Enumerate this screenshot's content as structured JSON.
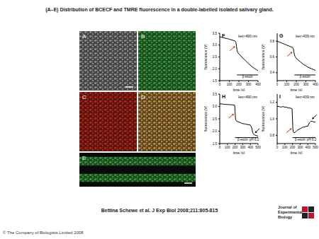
{
  "title": "(A–E) Distribution of BCECF and TMRE fluorescence in a double-labelled isolated salivary gland.",
  "images": [
    {
      "label": "A",
      "color": "#a0a0a0"
    },
    {
      "label": "B",
      "color": "#3cb043"
    },
    {
      "label": "C",
      "color": "#d0281a"
    },
    {
      "label": "D",
      "color": "#dba24a"
    },
    {
      "label": "E",
      "color": "#3cb043"
    }
  ],
  "chart_data": [
    {
      "title": "F",
      "type": "line",
      "annotation": "λex≈490 nm",
      "x_label": "time (s)",
      "y_label": "fluorescence (V)",
      "color": "#000000",
      "x": [
        0,
        20,
        40,
        60,
        80,
        100,
        120,
        140,
        160,
        170,
        175,
        180,
        185,
        190,
        200,
        220,
        240,
        260,
        280,
        300,
        320,
        340,
        360,
        380,
        400
      ],
      "values": [
        3.35,
        3.33,
        3.31,
        3.29,
        3.27,
        3.25,
        3.22,
        3.2,
        3.17,
        3.1,
        2.95,
        2.8,
        2.72,
        2.68,
        2.62,
        2.55,
        2.45,
        2.38,
        2.3,
        2.22,
        2.15,
        2.08,
        2.02,
        1.97,
        1.92
      ],
      "xlim": [
        0,
        400
      ],
      "xticks": [
        0,
        100,
        200,
        300,
        400
      ],
      "ylim": [
        1.5,
        3.5
      ],
      "yticks": [
        1.5,
        {
          "value": 2,
          "label": "2.0"
        },
        2.5,
        {
          "value": 3,
          "label": "3.0"
        },
        3.5
      ],
      "treatments": [
        {
          "label": "β-escin",
          "x": [
            180,
            400
          ]
        }
      ],
      "arrows": [
        {
          "x": 172,
          "y": 3.0,
          "color": "#e02a1a"
        }
      ]
    },
    {
      "title": "G",
      "type": "line",
      "annotation": "λex≈439 nm",
      "x_label": "time (s)",
      "y_label": "fluorescence (V)",
      "color": "#000000",
      "x": [
        0,
        20,
        40,
        60,
        80,
        100,
        120,
        140,
        160,
        170,
        175,
        180,
        185,
        190,
        200,
        220,
        240,
        260,
        280,
        300,
        320,
        340,
        360,
        380,
        400
      ],
      "values": [
        0.8,
        0.79,
        0.78,
        0.77,
        0.76,
        0.75,
        0.74,
        0.73,
        0.72,
        0.7,
        0.66,
        0.63,
        0.61,
        0.6,
        0.58,
        0.56,
        0.54,
        0.52,
        0.5,
        0.49,
        0.47,
        0.46,
        0.45,
        0.44,
        0.43
      ],
      "xlim": [
        0,
        400
      ],
      "xticks": [
        0,
        100,
        200,
        300,
        400
      ],
      "ylim": [
        0.3,
        0.9
      ],
      "yticks": [
        0.4,
        0.6,
        0.8
      ],
      "treatments": [
        {
          "label": "β-escin",
          "x": [
            180,
            400
          ]
        }
      ],
      "arrows": [
        {
          "x": 172,
          "y": 0.68,
          "color": "#e02a1a"
        }
      ]
    },
    {
      "title": "H",
      "type": "line",
      "annotation": "λex≈490 nm",
      "x_label": "time (s)",
      "y_label": "fluorescence (V)",
      "color": "#000000",
      "x": [
        0,
        25,
        50,
        75,
        100,
        125,
        150,
        175,
        195,
        200,
        205,
        210,
        220,
        240,
        260,
        280,
        300,
        320,
        340,
        360,
        380,
        400,
        410,
        420,
        430,
        440,
        460,
        480,
        500
      ],
      "values": [
        3.1,
        3.1,
        3.09,
        3.08,
        3.08,
        3.07,
        3.07,
        3.06,
        3.05,
        2.8,
        2.55,
        2.45,
        2.4,
        2.38,
        2.36,
        2.33,
        2.3,
        2.3,
        2.28,
        2.27,
        2.26,
        2.25,
        2.2,
        2.1,
        1.95,
        1.88,
        1.84,
        1.82,
        1.8
      ],
      "xlim": [
        0,
        500
      ],
      "xticks": [
        0,
        100,
        200,
        300,
        400,
        500
      ],
      "ylim": [
        1.5,
        3.5
      ],
      "yticks": [
        1.5,
        {
          "value": 2,
          "label": "2.0"
        },
        2.5,
        {
          "value": 3,
          "label": "3.0"
        },
        3.5
      ],
      "treatments": [
        {
          "label": "β-escin",
          "x": [
            200,
            400
          ]
        },
        {
          "label": "pH 6.2",
          "x": [
            400,
            500
          ]
        }
      ],
      "arrows": [
        {
          "x": 200,
          "y": 2.75,
          "color": "#e02a1a"
        },
        {
          "x": 445,
          "y": 1.88,
          "color": "#000000"
        }
      ]
    },
    {
      "title": "I",
      "type": "line",
      "annotation": "λex≈439 nm",
      "x_label": "time (s)",
      "y_label": "fluorescence (V)",
      "color": "#000000",
      "x": [
        0,
        25,
        50,
        75,
        100,
        125,
        150,
        175,
        195,
        200,
        205,
        210,
        220,
        240,
        260,
        280,
        300,
        320,
        340,
        360,
        380,
        400,
        410,
        420,
        430,
        440,
        460,
        480,
        500
      ],
      "values": [
        1.15,
        1.15,
        1.14,
        1.15,
        1.14,
        1.14,
        1.13,
        1.13,
        1.12,
        1.0,
        0.88,
        0.84,
        0.83,
        0.84,
        0.86,
        0.87,
        0.88,
        0.89,
        0.9,
        0.9,
        0.91,
        0.91,
        0.93,
        0.95,
        0.96,
        0.97,
        0.97,
        0.96,
        0.96
      ],
      "xlim": [
        0,
        500
      ],
      "xticks": [
        0,
        100,
        200,
        300,
        400,
        500
      ],
      "ylim": [
        0.7,
        1.3
      ],
      "yticks": [
        0.8,
        {
          "value": 1,
          "label": "1.0"
        },
        1.2
      ],
      "treatments": [
        {
          "label": "β-escin",
          "x": [
            200,
            400
          ]
        },
        {
          "label": "pH 6.2",
          "x": [
            400,
            500
          ]
        }
      ],
      "arrows": [
        {
          "x": 205,
          "y": 0.9,
          "color": "#e02a1a"
        },
        {
          "x": 440,
          "y": 0.98,
          "color": "#000000"
        }
      ]
    }
  ],
  "citation": "Bettina Schewe et al. J Exp Biol 2008;211:805-815",
  "copyright": "© The Company of Biologists Limited 2008",
  "journal": "Journal of Experimental Biology"
}
